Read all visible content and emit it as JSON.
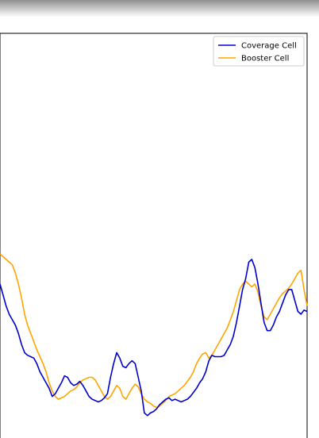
{
  "chart_data": {
    "type": "line",
    "title": "",
    "xlabel": "",
    "ylabel": "",
    "xlim": [
      0,
      100
    ],
    "ylim": [
      0,
      100
    ],
    "grid": false,
    "legend_placement": "top-right",
    "series": [
      {
        "name": "Coverage Cell",
        "color": "#0000cd",
        "points": [
          [
            0,
            44
          ],
          [
            1,
            40
          ],
          [
            2,
            36
          ],
          [
            3,
            33
          ],
          [
            4,
            31
          ],
          [
            5,
            29
          ],
          [
            6,
            26
          ],
          [
            7,
            22
          ],
          [
            8,
            19
          ],
          [
            9,
            18
          ],
          [
            10,
            17.5
          ],
          [
            11,
            17
          ],
          [
            12,
            15
          ],
          [
            13,
            12
          ],
          [
            14,
            10
          ],
          [
            15,
            8
          ],
          [
            16,
            6
          ],
          [
            17,
            3
          ],
          [
            18,
            4
          ],
          [
            19,
            6
          ],
          [
            20,
            8
          ],
          [
            21,
            10.5
          ],
          [
            22,
            10
          ],
          [
            23,
            8
          ],
          [
            24,
            7
          ],
          [
            25,
            7.5
          ],
          [
            26,
            8.5
          ],
          [
            27,
            7
          ],
          [
            28,
            5
          ],
          [
            29,
            3
          ],
          [
            30,
            2
          ],
          [
            31,
            1.5
          ],
          [
            32,
            1
          ],
          [
            33,
            1.5
          ],
          [
            34,
            2.5
          ],
          [
            35,
            4
          ],
          [
            36,
            10
          ],
          [
            37,
            15
          ],
          [
            38,
            19
          ],
          [
            39,
            17
          ],
          [
            40,
            14
          ],
          [
            41,
            13.5
          ],
          [
            42,
            15
          ],
          [
            43,
            16
          ],
          [
            44,
            15
          ],
          [
            45,
            10
          ],
          [
            46,
            5
          ],
          [
            47,
            -3
          ],
          [
            48,
            -4
          ],
          [
            49,
            -3
          ],
          [
            50,
            -2.5
          ],
          [
            51,
            -1.5
          ],
          [
            52,
            0
          ],
          [
            53,
            1
          ],
          [
            54,
            2
          ],
          [
            55,
            2.5
          ],
          [
            56,
            1.5
          ],
          [
            57,
            2
          ],
          [
            58,
            1.5
          ],
          [
            59,
            1
          ],
          [
            60,
            1.5
          ],
          [
            61,
            2
          ],
          [
            62,
            3
          ],
          [
            63,
            4.5
          ],
          [
            64,
            6
          ],
          [
            65,
            8
          ],
          [
            66,
            9.5
          ],
          [
            67,
            12
          ],
          [
            68,
            16
          ],
          [
            69,
            18
          ],
          [
            70,
            17.5
          ],
          [
            71,
            17.5
          ],
          [
            72,
            17.5
          ],
          [
            73,
            18
          ],
          [
            74,
            20
          ],
          [
            75,
            22
          ],
          [
            76,
            25
          ],
          [
            77,
            30
          ],
          [
            78,
            36
          ],
          [
            79,
            42
          ],
          [
            80,
            46
          ],
          [
            81,
            52
          ],
          [
            82,
            53
          ],
          [
            83,
            50
          ],
          [
            84,
            44
          ],
          [
            85,
            37
          ],
          [
            86,
            30
          ],
          [
            87,
            27
          ],
          [
            88,
            27
          ],
          [
            89,
            29
          ],
          [
            90,
            32
          ],
          [
            91,
            34
          ],
          [
            92,
            37
          ],
          [
            93,
            40
          ],
          [
            94,
            42
          ],
          [
            95,
            42
          ],
          [
            96,
            38
          ],
          [
            97,
            34
          ],
          [
            98,
            33
          ],
          [
            99,
            34.5
          ],
          [
            100,
            34
          ]
        ]
      },
      {
        "name": "Booster Cell",
        "color": "#ffa500",
        "points": [
          [
            0,
            55
          ],
          [
            1,
            54
          ],
          [
            2,
            53
          ],
          [
            3,
            52
          ],
          [
            4,
            51
          ],
          [
            5,
            48
          ],
          [
            6,
            44
          ],
          [
            7,
            39
          ],
          [
            8,
            33
          ],
          [
            9,
            29
          ],
          [
            10,
            26
          ],
          [
            11,
            23
          ],
          [
            12,
            20
          ],
          [
            13,
            17.5
          ],
          [
            14,
            15
          ],
          [
            15,
            12
          ],
          [
            16,
            8
          ],
          [
            17,
            5
          ],
          [
            18,
            3
          ],
          [
            19,
            2
          ],
          [
            20,
            2.5
          ],
          [
            21,
            3
          ],
          [
            22,
            4
          ],
          [
            23,
            5
          ],
          [
            24,
            5.5
          ],
          [
            25,
            6.5
          ],
          [
            26,
            8
          ],
          [
            27,
            9
          ],
          [
            28,
            9.5
          ],
          [
            29,
            10
          ],
          [
            30,
            10
          ],
          [
            31,
            9
          ],
          [
            32,
            7
          ],
          [
            33,
            5
          ],
          [
            34,
            3
          ],
          [
            35,
            2
          ],
          [
            36,
            3
          ],
          [
            37,
            5
          ],
          [
            38,
            7
          ],
          [
            39,
            6
          ],
          [
            40,
            3
          ],
          [
            41,
            2
          ],
          [
            42,
            4
          ],
          [
            43,
            6
          ],
          [
            44,
            7.5
          ],
          [
            45,
            6.5
          ],
          [
            46,
            4
          ],
          [
            47,
            2
          ],
          [
            48,
            1
          ],
          [
            49,
            0.5
          ],
          [
            50,
            -0.5
          ],
          [
            51,
            -1
          ],
          [
            52,
            -0.5
          ],
          [
            53,
            0.5
          ],
          [
            54,
            1.5
          ],
          [
            55,
            3
          ],
          [
            56,
            3.5
          ],
          [
            57,
            4
          ],
          [
            58,
            5
          ],
          [
            59,
            6
          ],
          [
            60,
            7
          ],
          [
            61,
            8.5
          ],
          [
            62,
            10
          ],
          [
            63,
            12
          ],
          [
            64,
            15
          ],
          [
            65,
            17
          ],
          [
            66,
            18.5
          ],
          [
            67,
            19
          ],
          [
            68,
            17
          ],
          [
            69,
            18
          ],
          [
            70,
            20
          ],
          [
            71,
            22
          ],
          [
            72,
            24
          ],
          [
            73,
            26
          ],
          [
            74,
            28
          ],
          [
            75,
            31
          ],
          [
            76,
            34
          ],
          [
            77,
            38
          ],
          [
            78,
            42
          ],
          [
            79,
            44
          ],
          [
            80,
            45
          ],
          [
            81,
            44
          ],
          [
            82,
            43
          ],
          [
            83,
            44
          ],
          [
            84,
            41
          ],
          [
            85,
            36
          ],
          [
            86,
            32
          ],
          [
            87,
            31
          ],
          [
            88,
            33
          ],
          [
            89,
            35
          ],
          [
            90,
            37
          ],
          [
            91,
            39
          ],
          [
            92,
            40.5
          ],
          [
            93,
            41.5
          ],
          [
            94,
            42.5
          ],
          [
            95,
            44
          ],
          [
            96,
            46
          ],
          [
            97,
            48
          ],
          [
            98,
            49
          ],
          [
            99,
            42
          ],
          [
            100,
            36
          ]
        ]
      }
    ]
  }
}
